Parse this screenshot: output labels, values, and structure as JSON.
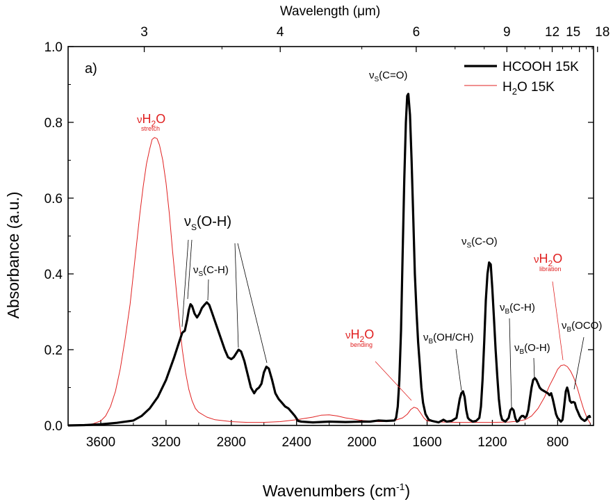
{
  "chart_data": {
    "type": "line",
    "panel_label": "a)",
    "xlabel": "Wavenumbers (cm",
    "xlabel_sup": "-1",
    "xlabel_close": ")",
    "ylabel": "Absorbance (a.u.)",
    "top_axis_title": "Wavelength (μm)",
    "xlim": [
      3800,
      580
    ],
    "ylim": [
      0.0,
      1.0
    ],
    "x_ticks": [
      3600,
      3200,
      2800,
      2400,
      2000,
      1600,
      1200,
      800
    ],
    "x_tick_labels": [
      "3600",
      "3200",
      "2800",
      "2400",
      "2000",
      "1600",
      "1200",
      "800"
    ],
    "y_ticks": [
      0.0,
      0.2,
      0.4,
      0.6,
      0.8,
      1.0
    ],
    "y_tick_labels": [
      "0.0",
      "0.2",
      "0.4",
      "0.6",
      "0.8",
      "1.0"
    ],
    "top_ticks_um": [
      3,
      4,
      6,
      9,
      12,
      15,
      18
    ],
    "top_tick_labels": [
      "3",
      "4",
      "6",
      "9",
      "12",
      "15",
      "18"
    ],
    "legend": [
      {
        "key": "hcooh",
        "label": "HCOOH 15K"
      },
      {
        "key": "h2o",
        "label_main": "H",
        "label_sub": "2",
        "label_rest": "O 15K"
      }
    ],
    "series": [
      {
        "name": "HCOOH 15K",
        "color": "#000000",
        "points": [
          [
            3800,
            0.0
          ],
          [
            3700,
            0.001
          ],
          [
            3600,
            0.003
          ],
          [
            3500,
            0.007
          ],
          [
            3400,
            0.013
          ],
          [
            3350,
            0.025
          ],
          [
            3300,
            0.045
          ],
          [
            3250,
            0.075
          ],
          [
            3200,
            0.12
          ],
          [
            3150,
            0.18
          ],
          [
            3120,
            0.22
          ],
          [
            3100,
            0.245
          ],
          [
            3085,
            0.25
          ],
          [
            3070,
            0.28
          ],
          [
            3060,
            0.305
          ],
          [
            3050,
            0.32
          ],
          [
            3040,
            0.315
          ],
          [
            3025,
            0.295
          ],
          [
            3010,
            0.285
          ],
          [
            2995,
            0.295
          ],
          [
            2980,
            0.31
          ],
          [
            2965,
            0.318
          ],
          [
            2950,
            0.325
          ],
          [
            2935,
            0.318
          ],
          [
            2920,
            0.3
          ],
          [
            2900,
            0.275
          ],
          [
            2880,
            0.25
          ],
          [
            2860,
            0.225
          ],
          [
            2840,
            0.2
          ],
          [
            2820,
            0.18
          ],
          [
            2800,
            0.175
          ],
          [
            2785,
            0.18
          ],
          [
            2770,
            0.19
          ],
          [
            2755,
            0.2
          ],
          [
            2740,
            0.195
          ],
          [
            2720,
            0.17
          ],
          [
            2700,
            0.135
          ],
          [
            2680,
            0.1
          ],
          [
            2660,
            0.085
          ],
          [
            2645,
            0.095
          ],
          [
            2630,
            0.1
          ],
          [
            2615,
            0.11
          ],
          [
            2600,
            0.14
          ],
          [
            2585,
            0.155
          ],
          [
            2570,
            0.15
          ],
          [
            2550,
            0.12
          ],
          [
            2530,
            0.085
          ],
          [
            2510,
            0.07
          ],
          [
            2490,
            0.06
          ],
          [
            2470,
            0.05
          ],
          [
            2450,
            0.045
          ],
          [
            2430,
            0.035
          ],
          [
            2410,
            0.025
          ],
          [
            2390,
            0.012
          ],
          [
            2370,
            0.01
          ],
          [
            2300,
            0.008
          ],
          [
            2200,
            0.01
          ],
          [
            2100,
            0.009
          ],
          [
            2000,
            0.01
          ],
          [
            1950,
            0.01
          ],
          [
            1900,
            0.013
          ],
          [
            1850,
            0.012
          ],
          [
            1800,
            0.013
          ],
          [
            1790,
            0.02
          ],
          [
            1780,
            0.05
          ],
          [
            1770,
            0.12
          ],
          [
            1760,
            0.25
          ],
          [
            1750,
            0.45
          ],
          [
            1740,
            0.65
          ],
          [
            1730,
            0.8
          ],
          [
            1722,
            0.87
          ],
          [
            1715,
            0.875
          ],
          [
            1705,
            0.82
          ],
          [
            1695,
            0.7
          ],
          [
            1685,
            0.55
          ],
          [
            1675,
            0.4
          ],
          [
            1665,
            0.3
          ],
          [
            1655,
            0.22
          ],
          [
            1645,
            0.16
          ],
          [
            1635,
            0.1
          ],
          [
            1625,
            0.06
          ],
          [
            1610,
            0.03
          ],
          [
            1590,
            0.015
          ],
          [
            1570,
            0.012
          ],
          [
            1530,
            0.008
          ],
          [
            1500,
            0.015
          ],
          [
            1480,
            0.01
          ],
          [
            1450,
            0.012
          ],
          [
            1420,
            0.02
          ],
          [
            1400,
            0.07
          ],
          [
            1390,
            0.085
          ],
          [
            1380,
            0.09
          ],
          [
            1370,
            0.075
          ],
          [
            1360,
            0.04
          ],
          [
            1350,
            0.02
          ],
          [
            1340,
            0.015
          ],
          [
            1320,
            0.01
          ],
          [
            1300,
            0.012
          ],
          [
            1280,
            0.02
          ],
          [
            1270,
            0.05
          ],
          [
            1260,
            0.12
          ],
          [
            1250,
            0.22
          ],
          [
            1240,
            0.33
          ],
          [
            1230,
            0.4
          ],
          [
            1220,
            0.43
          ],
          [
            1210,
            0.425
          ],
          [
            1200,
            0.36
          ],
          [
            1190,
            0.28
          ],
          [
            1180,
            0.2
          ],
          [
            1170,
            0.13
          ],
          [
            1160,
            0.07
          ],
          [
            1150,
            0.03
          ],
          [
            1140,
            0.015
          ],
          [
            1120,
            0.01
          ],
          [
            1100,
            0.02
          ],
          [
            1090,
            0.04
          ],
          [
            1080,
            0.045
          ],
          [
            1070,
            0.04
          ],
          [
            1060,
            0.02
          ],
          [
            1050,
            0.01
          ],
          [
            1040,
            0.012
          ],
          [
            1030,
            0.02
          ],
          [
            1020,
            0.025
          ],
          [
            1010,
            0.025
          ],
          [
            1000,
            0.02
          ],
          [
            990,
            0.025
          ],
          [
            980,
            0.04
          ],
          [
            970,
            0.07
          ],
          [
            960,
            0.1
          ],
          [
            950,
            0.12
          ],
          [
            940,
            0.125
          ],
          [
            930,
            0.12
          ],
          [
            920,
            0.11
          ],
          [
            910,
            0.1
          ],
          [
            900,
            0.095
          ],
          [
            880,
            0.09
          ],
          [
            860,
            0.085
          ],
          [
            850,
            0.08
          ],
          [
            840,
            0.085
          ],
          [
            830,
            0.07
          ],
          [
            820,
            0.05
          ],
          [
            810,
            0.03
          ],
          [
            800,
            0.02
          ],
          [
            790,
            0.015
          ],
          [
            780,
            0.01
          ],
          [
            770,
            0.015
          ],
          [
            760,
            0.05
          ],
          [
            750,
            0.09
          ],
          [
            742,
            0.1
          ],
          [
            735,
            0.09
          ],
          [
            725,
            0.065
          ],
          [
            715,
            0.06
          ],
          [
            705,
            0.062
          ],
          [
            695,
            0.06
          ],
          [
            685,
            0.045
          ],
          [
            675,
            0.035
          ],
          [
            665,
            0.025
          ],
          [
            655,
            0.018
          ],
          [
            645,
            0.015
          ],
          [
            635,
            0.012
          ],
          [
            625,
            0.015
          ],
          [
            615,
            0.022
          ],
          [
            605,
            0.025
          ],
          [
            600,
            0.02
          ]
        ]
      },
      {
        "name": "H2O 15K",
        "color": "#e02020",
        "points": [
          [
            3800,
            0.0
          ],
          [
            3700,
            0.002
          ],
          [
            3650,
            0.004
          ],
          [
            3600,
            0.012
          ],
          [
            3570,
            0.025
          ],
          [
            3540,
            0.05
          ],
          [
            3510,
            0.09
          ],
          [
            3480,
            0.15
          ],
          [
            3450,
            0.23
          ],
          [
            3420,
            0.32
          ],
          [
            3400,
            0.4
          ],
          [
            3380,
            0.48
          ],
          [
            3360,
            0.56
          ],
          [
            3340,
            0.63
          ],
          [
            3320,
            0.69
          ],
          [
            3300,
            0.73
          ],
          [
            3285,
            0.755
          ],
          [
            3270,
            0.76
          ],
          [
            3255,
            0.757
          ],
          [
            3240,
            0.74
          ],
          [
            3220,
            0.7
          ],
          [
            3200,
            0.64
          ],
          [
            3180,
            0.56
          ],
          [
            3160,
            0.46
          ],
          [
            3140,
            0.37
          ],
          [
            3120,
            0.28
          ],
          [
            3100,
            0.2
          ],
          [
            3080,
            0.14
          ],
          [
            3060,
            0.095
          ],
          [
            3040,
            0.065
          ],
          [
            3020,
            0.045
          ],
          [
            3000,
            0.035
          ],
          [
            2950,
            0.022
          ],
          [
            2900,
            0.015
          ],
          [
            2800,
            0.01
          ],
          [
            2700,
            0.008
          ],
          [
            2600,
            0.008
          ],
          [
            2500,
            0.01
          ],
          [
            2400,
            0.015
          ],
          [
            2300,
            0.022
          ],
          [
            2250,
            0.027
          ],
          [
            2200,
            0.028
          ],
          [
            2150,
            0.025
          ],
          [
            2100,
            0.02
          ],
          [
            2000,
            0.013
          ],
          [
            1900,
            0.01
          ],
          [
            1850,
            0.01
          ],
          [
            1800,
            0.013
          ],
          [
            1750,
            0.02
          ],
          [
            1720,
            0.03
          ],
          [
            1700,
            0.042
          ],
          [
            1680,
            0.048
          ],
          [
            1660,
            0.045
          ],
          [
            1640,
            0.033
          ],
          [
            1620,
            0.02
          ],
          [
            1600,
            0.012
          ],
          [
            1550,
            0.01
          ],
          [
            1500,
            0.009
          ],
          [
            1400,
            0.008
          ],
          [
            1300,
            0.008
          ],
          [
            1200,
            0.008
          ],
          [
            1100,
            0.009
          ],
          [
            1050,
            0.011
          ],
          [
            1000,
            0.015
          ],
          [
            960,
            0.025
          ],
          [
            920,
            0.045
          ],
          [
            880,
            0.075
          ],
          [
            850,
            0.105
          ],
          [
            820,
            0.13
          ],
          [
            800,
            0.148
          ],
          [
            780,
            0.158
          ],
          [
            760,
            0.16
          ],
          [
            740,
            0.155
          ],
          [
            720,
            0.143
          ],
          [
            700,
            0.125
          ],
          [
            680,
            0.1
          ],
          [
            660,
            0.07
          ],
          [
            640,
            0.042
          ],
          [
            620,
            0.02
          ],
          [
            600,
            0.005
          ]
        ]
      }
    ],
    "annotations": [
      {
        "key": "h2o_stretch",
        "nu": "ν",
        "main": "H",
        "sub2": "2",
        "rest": "O",
        "sub": "stretch",
        "color": "#e02020"
      },
      {
        "key": "vs_oh",
        "nu": "ν",
        "sub": "S",
        "rest": "(O-H)",
        "color": "#000000"
      },
      {
        "key": "vs_ch",
        "nu": "ν",
        "sub": "S",
        "rest": "(C-H)",
        "color": "#000000"
      },
      {
        "key": "vs_co_double",
        "nu": "ν",
        "sub": "S",
        "rest": "(C=O)",
        "color": "#000000"
      },
      {
        "key": "vs_co",
        "nu": "ν",
        "sub": "S",
        "rest": "(C-O)",
        "color": "#000000"
      },
      {
        "key": "vb_ohch",
        "nu": "ν",
        "sub": "B",
        "rest": "(OH/CH)",
        "color": "#000000"
      },
      {
        "key": "vb_ch",
        "nu": "ν",
        "sub": "B",
        "rest": "(C-H)",
        "color": "#000000"
      },
      {
        "key": "vb_oh",
        "nu": "ν",
        "sub": "B",
        "rest": "(O-H)",
        "color": "#000000"
      },
      {
        "key": "vb_oco",
        "nu": "ν",
        "sub": "B",
        "rest": "(OCO)",
        "color": "#000000"
      },
      {
        "key": "h2o_bending",
        "nu": "ν",
        "main": "H",
        "sub2": "2",
        "rest": "O",
        "sub": "bending",
        "color": "#e02020"
      },
      {
        "key": "h2o_libration",
        "nu": "ν",
        "main": "H",
        "sub2": "2",
        "rest": "O",
        "sub": "libration",
        "color": "#e02020"
      }
    ]
  }
}
